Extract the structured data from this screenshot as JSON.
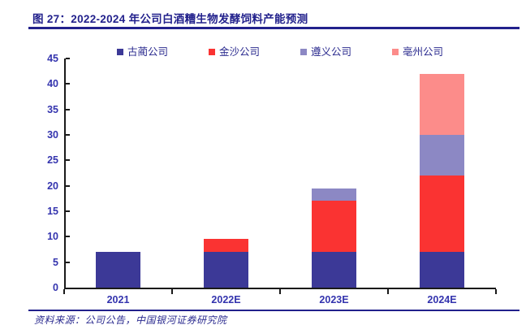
{
  "figure": {
    "title": "图 27：2022-2024 年公司白酒糟生物发酵饲料产能预测",
    "source": "资料来源：公司公告，中国银河证券研究院"
  },
  "colors": {
    "title_navy": "#22218C",
    "axis_label_blue": "#3434AE",
    "legend_text_navy": "#2B2B8F",
    "axis_line": "#1a1a1a"
  },
  "chart_data": {
    "type": "bar",
    "stacked": true,
    "title": "2022-2024 年公司白酒糟生物发酵饲料产能预测",
    "categories": [
      "2021",
      "2022E",
      "2023E",
      "2024E"
    ],
    "series": [
      {
        "name": "古蔺公司",
        "color": "#3C3997",
        "values": [
          7,
          7,
          7,
          7
        ]
      },
      {
        "name": "金沙公司",
        "color": "#FA3332",
        "values": [
          0,
          2.5,
          10,
          15
        ]
      },
      {
        "name": "遵义公司",
        "color": "#8C88C4",
        "values": [
          0,
          0,
          2.5,
          8
        ]
      },
      {
        "name": "亳州公司",
        "color": "#FC8C8A",
        "values": [
          0,
          0,
          0,
          12
        ]
      }
    ],
    "totals": [
      7,
      9.5,
      19.5,
      42
    ],
    "xlabel": "",
    "ylabel": "",
    "ylim": [
      0,
      45
    ],
    "ytick_step": 5,
    "grid": false,
    "legend_position": "top"
  }
}
